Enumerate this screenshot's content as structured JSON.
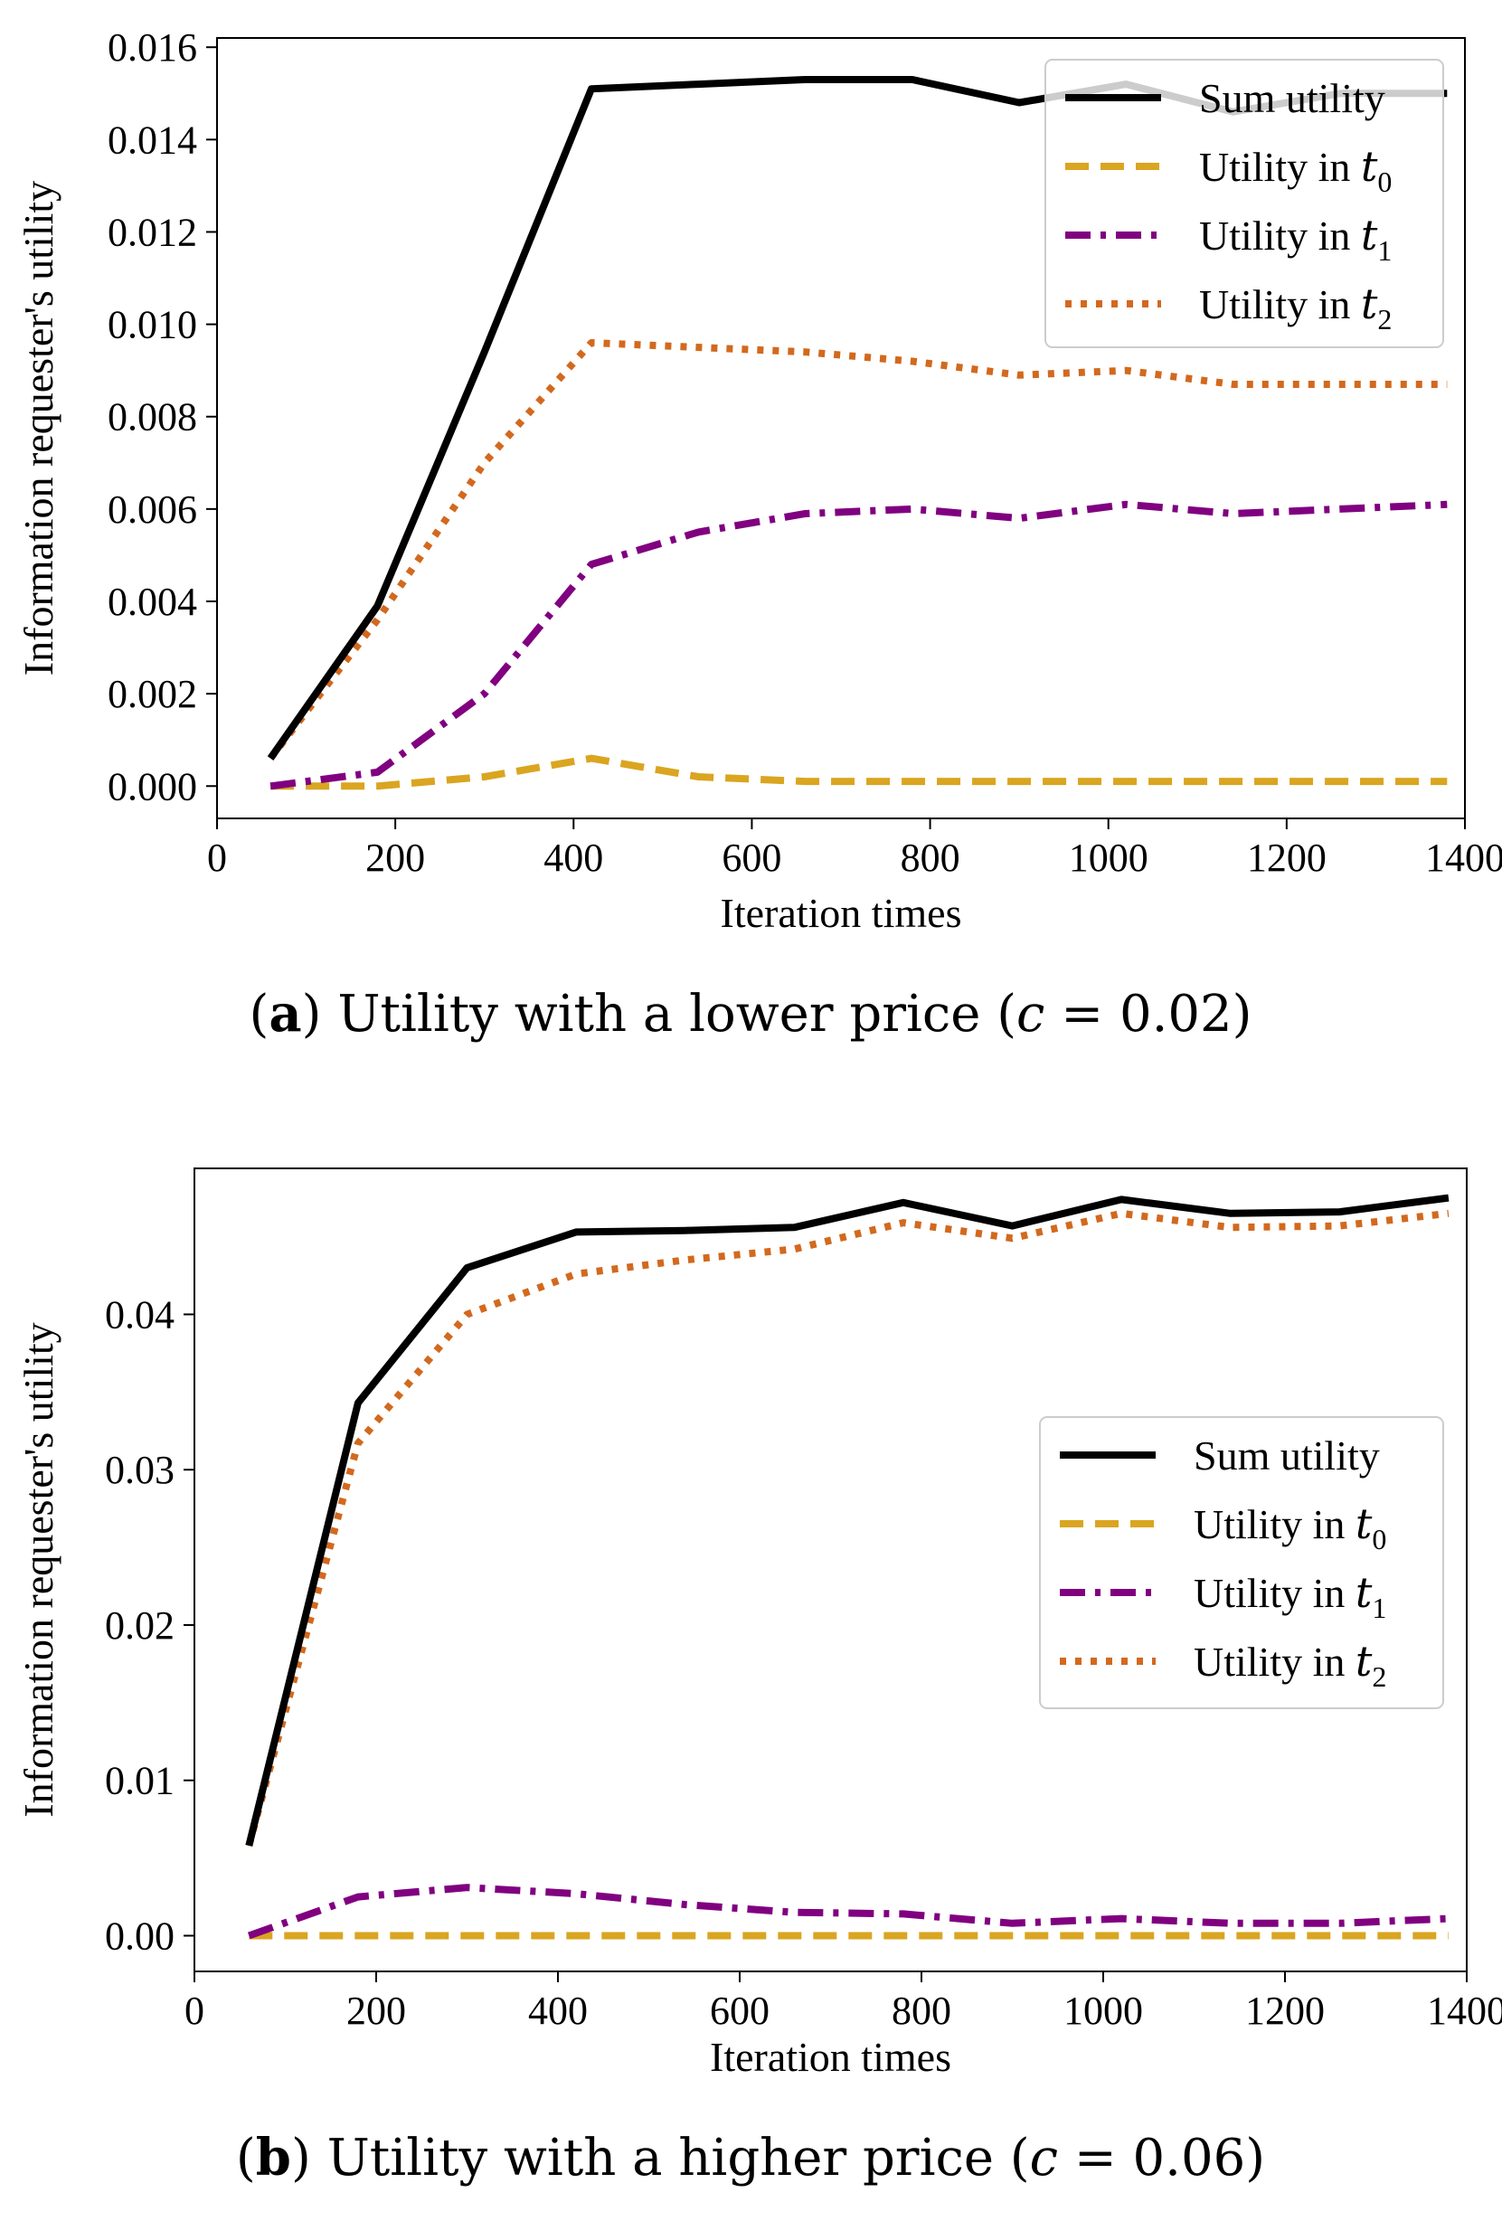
{
  "chart_data": [
    {
      "type": "line",
      "caption_label": "a",
      "caption": "Utility with a lower price (c = 0.02)",
      "caption_text": "Utility with a lower price (",
      "caption_var": "c",
      "caption_value": " = 0.02)",
      "xlabel": "Iteration times",
      "ylabel": "Information requester's utility",
      "xlim": [
        0,
        1400
      ],
      "ylim": [
        -0.0007,
        0.0162
      ],
      "xticks": [
        0,
        200,
        400,
        600,
        800,
        1000,
        1200,
        1400
      ],
      "yticks": [
        "0.000",
        "0.002",
        "0.004",
        "0.006",
        "0.008",
        "0.010",
        "0.012",
        "0.014",
        "0.016"
      ],
      "legend_position": "top-right",
      "x": [
        60,
        180,
        300,
        420,
        540,
        660,
        780,
        900,
        1020,
        1140,
        1260,
        1380
      ],
      "series": [
        {
          "name": "Sum utility",
          "name_text": "Sum utility",
          "name_sub": "",
          "color": "#000000",
          "style": "solid",
          "values": [
            0.0006,
            0.0039,
            0.0094,
            0.0151,
            0.0152,
            0.0153,
            0.0153,
            0.0148,
            0.0152,
            0.0146,
            0.015,
            0.015
          ]
        },
        {
          "name": "Utility in t0",
          "name_text": "Utility in ",
          "name_sub": "0",
          "color": "#DAA520",
          "style": "dashed",
          "values": [
            0.0,
            0.0,
            0.0002,
            0.0006,
            0.0002,
            0.0001,
            0.0001,
            0.0001,
            0.0001,
            0.0001,
            0.0001,
            0.0001
          ]
        },
        {
          "name": "Utility in t1",
          "name_text": "Utility in ",
          "name_sub": "1",
          "color": "#800080",
          "style": "dashdot",
          "values": [
            0.0,
            0.0003,
            0.002,
            0.0048,
            0.0055,
            0.0059,
            0.006,
            0.0058,
            0.0061,
            0.0059,
            0.006,
            0.0061
          ]
        },
        {
          "name": "Utility in t2",
          "name_text": "Utility in ",
          "name_sub": "2",
          "color": "#D2691E",
          "style": "dotted",
          "values": [
            0.0006,
            0.0036,
            0.007,
            0.0096,
            0.0095,
            0.0094,
            0.0092,
            0.0089,
            0.009,
            0.0087,
            0.0087,
            0.0087
          ]
        }
      ]
    },
    {
      "type": "line",
      "caption_label": "b",
      "caption": "Utility with a higher price (c = 0.06)",
      "caption_text": "Utility with a higher price (",
      "caption_var": "c",
      "caption_value": " = 0.06)",
      "xlabel": "Iteration times",
      "ylabel": "Information requester's utility",
      "xlim": [
        0,
        1400
      ],
      "ylim": [
        -0.0023,
        0.0494
      ],
      "xticks": [
        0,
        200,
        400,
        600,
        800,
        1000,
        1200,
        1400
      ],
      "yticks": [
        "0.00",
        "0.01",
        "0.02",
        "0.03",
        "0.04"
      ],
      "legend_position": "center-right",
      "x": [
        60,
        180,
        300,
        420,
        540,
        660,
        780,
        900,
        1020,
        1140,
        1260,
        1380
      ],
      "series": [
        {
          "name": "Sum utility",
          "name_text": "Sum utility",
          "name_sub": "",
          "color": "#000000",
          "style": "solid",
          "values": [
            0.0058,
            0.0343,
            0.043,
            0.0453,
            0.0454,
            0.0456,
            0.0472,
            0.0457,
            0.0474,
            0.0465,
            0.0466,
            0.0475
          ]
        },
        {
          "name": "Utility in t0",
          "name_text": "Utility in ",
          "name_sub": "0",
          "color": "#DAA520",
          "style": "dashed",
          "values": [
            0.0,
            0.0,
            0.0,
            0.0,
            0.0,
            0.0,
            0.0,
            0.0,
            0.0,
            0.0,
            0.0,
            0.0
          ]
        },
        {
          "name": "Utility in t1",
          "name_text": "Utility in ",
          "name_sub": "1",
          "color": "#800080",
          "style": "dashdot",
          "values": [
            0.0,
            0.0025,
            0.0031,
            0.0027,
            0.002,
            0.0015,
            0.0014,
            0.0008,
            0.0011,
            0.0008,
            0.0008,
            0.0011
          ]
        },
        {
          "name": "Utility in t2",
          "name_text": "Utility in ",
          "name_sub": "2",
          "color": "#D2691E",
          "style": "dotted",
          "values": [
            0.0058,
            0.0317,
            0.04,
            0.0426,
            0.0435,
            0.0442,
            0.0459,
            0.0449,
            0.0465,
            0.0456,
            0.0457,
            0.0465
          ]
        }
      ]
    }
  ]
}
